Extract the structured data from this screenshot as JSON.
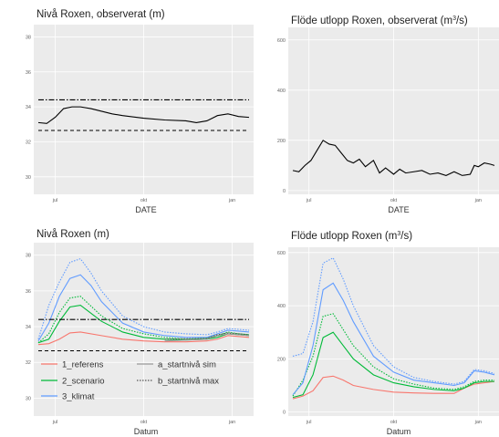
{
  "chart_data": [
    {
      "type": "line",
      "title": "Nivå Roxen, observerat (m)",
      "xlabel": "DATE",
      "x_ticks": [
        "jul",
        "okt",
        "jan"
      ],
      "ylim": [
        29,
        38.7
      ],
      "y_ticks": [
        30,
        32,
        34,
        36,
        38
      ],
      "grid": true,
      "series": [
        {
          "style": "solid",
          "color": "#000000",
          "x": [
            0,
            0.04,
            0.08,
            0.12,
            0.16,
            0.2,
            0.25,
            0.3,
            0.35,
            0.4,
            0.5,
            0.6,
            0.7,
            0.75,
            0.8,
            0.85,
            0.9,
            0.95,
            1
          ],
          "y": [
            33.1,
            33.05,
            33.4,
            33.9,
            34.0,
            34.0,
            33.9,
            33.75,
            33.6,
            33.5,
            33.35,
            33.25,
            33.2,
            33.1,
            33.2,
            33.5,
            33.6,
            33.45,
            33.4
          ]
        },
        {
          "style": "dotdash",
          "color": "#000000",
          "x": [
            0,
            1
          ],
          "y": [
            34.4,
            34.4
          ]
        },
        {
          "style": "dashed",
          "color": "#000000",
          "x": [
            0,
            1
          ],
          "y": [
            32.65,
            32.65
          ]
        }
      ]
    },
    {
      "type": "line",
      "title": "Flöde utlopp Roxen, observerat (m",
      "title_sup": "3",
      "title_end": "/s)",
      "xlabel": "DATE",
      "x_ticks": [
        "jul",
        "okt",
        "jan"
      ],
      "ylim": [
        -15,
        650
      ],
      "y_ticks": [
        0,
        200,
        400,
        600
      ],
      "grid": true,
      "series": [
        {
          "style": "solid",
          "color": "#000000",
          "x": [
            0,
            0.03,
            0.06,
            0.09,
            0.12,
            0.15,
            0.18,
            0.21,
            0.24,
            0.27,
            0.3,
            0.33,
            0.36,
            0.4,
            0.43,
            0.46,
            0.5,
            0.53,
            0.56,
            0.6,
            0.64,
            0.68,
            0.72,
            0.76,
            0.8,
            0.84,
            0.88,
            0.9,
            0.92,
            0.95,
            0.98,
            1
          ],
          "y": [
            80,
            75,
            100,
            120,
            160,
            200,
            185,
            180,
            150,
            120,
            110,
            125,
            95,
            120,
            70,
            90,
            65,
            85,
            70,
            75,
            80,
            65,
            70,
            60,
            75,
            60,
            65,
            100,
            95,
            110,
            105,
            100
          ]
        }
      ]
    },
    {
      "type": "line",
      "title": "Nivå Roxen (m)",
      "xlabel": "Datum",
      "x_ticks": [
        "jul",
        "okt",
        "jan"
      ],
      "ylim": [
        29,
        38.7
      ],
      "y_ticks": [
        30,
        32,
        34,
        36,
        38
      ],
      "grid": true,
      "legend": {
        "placement": "bottom-left",
        "items": [
          {
            "label": "1_referens",
            "color": "#f8766d",
            "style": "solid"
          },
          {
            "label": "2_scenario",
            "color": "#00ba38",
            "style": "solid"
          },
          {
            "label": "3_klimat",
            "color": "#619cff",
            "style": "solid"
          },
          {
            "label": "a_startnivå sim",
            "color": "#999999",
            "style": "solid"
          },
          {
            "label": "b_startnivå max",
            "color": "#555555",
            "style": "dotted"
          }
        ]
      },
      "series": [
        {
          "name": "1_referens",
          "style": "solid",
          "color": "#f8766d",
          "x": [
            0,
            0.05,
            0.1,
            0.15,
            0.2,
            0.3,
            0.4,
            0.5,
            0.6,
            0.7,
            0.8,
            0.85,
            0.9,
            0.95,
            1
          ],
          "y": [
            33.0,
            33.05,
            33.3,
            33.65,
            33.7,
            33.5,
            33.3,
            33.2,
            33.15,
            33.15,
            33.2,
            33.3,
            33.5,
            33.45,
            33.4
          ]
        },
        {
          "name": "2_scenario",
          "style": "solid",
          "color": "#00ba38",
          "x": [
            0,
            0.05,
            0.1,
            0.15,
            0.2,
            0.3,
            0.4,
            0.5,
            0.6,
            0.7,
            0.8,
            0.85,
            0.9,
            0.95,
            1
          ],
          "y": [
            33.1,
            33.3,
            34.3,
            35.1,
            35.2,
            34.3,
            33.7,
            33.4,
            33.3,
            33.25,
            33.3,
            33.4,
            33.6,
            33.55,
            33.5
          ]
        },
        {
          "name": "2_scenario max",
          "style": "dotted",
          "color": "#00ba38",
          "x": [
            0,
            0.05,
            0.1,
            0.15,
            0.2,
            0.3,
            0.4,
            0.5,
            0.6,
            0.7,
            0.8,
            0.85,
            0.9,
            0.95,
            1
          ],
          "y": [
            33.1,
            33.6,
            34.8,
            35.6,
            35.7,
            34.6,
            33.9,
            33.6,
            33.4,
            33.3,
            33.35,
            33.5,
            33.7,
            33.6,
            33.55
          ]
        },
        {
          "name": "3_klimat",
          "style": "solid",
          "color": "#619cff",
          "x": [
            0,
            0.05,
            0.1,
            0.15,
            0.2,
            0.25,
            0.3,
            0.4,
            0.5,
            0.6,
            0.7,
            0.8,
            0.85,
            0.9,
            0.95,
            1
          ],
          "y": [
            33.2,
            34.2,
            35.7,
            36.7,
            36.9,
            36.3,
            35.4,
            34.2,
            33.7,
            33.5,
            33.4,
            33.4,
            33.6,
            33.8,
            33.75,
            33.7
          ]
        },
        {
          "name": "3_klimat max",
          "style": "dotted",
          "color": "#619cff",
          "x": [
            0,
            0.05,
            0.1,
            0.15,
            0.2,
            0.25,
            0.3,
            0.4,
            0.5,
            0.6,
            0.7,
            0.8,
            0.85,
            0.9,
            0.95,
            1
          ],
          "y": [
            33.3,
            35.2,
            36.5,
            37.6,
            37.8,
            37.0,
            36.0,
            34.6,
            34.0,
            33.7,
            33.6,
            33.55,
            33.7,
            33.9,
            33.85,
            33.8
          ]
        },
        {
          "name": "a_startnivå sim",
          "style": "solid",
          "color": "#999999",
          "x": [
            0.6,
            0.8,
            0.85,
            0.9,
            0.95,
            1
          ],
          "y": [
            33.2,
            33.3,
            33.5,
            33.6,
            33.55,
            33.5
          ]
        },
        {
          "name": "b_startnivå max",
          "style": "dotted",
          "color": "#555555",
          "x": [
            0.6,
            0.8,
            0.85,
            0.9,
            0.95,
            1
          ],
          "y": [
            33.3,
            33.35,
            33.55,
            33.65,
            33.6,
            33.55
          ]
        },
        {
          "name": "34.4",
          "style": "dotdash",
          "color": "#000000",
          "x": [
            0,
            1
          ],
          "y": [
            34.4,
            34.4
          ]
        },
        {
          "name": "32.65",
          "style": "dashed",
          "color": "#000000",
          "x": [
            0,
            1
          ],
          "y": [
            32.65,
            32.65
          ]
        }
      ]
    },
    {
      "type": "line",
      "title": "Flöde utlopp Roxen (m",
      "title_sup": "3",
      "title_end": "/s)",
      "xlabel": "Datum",
      "x_ticks": [
        "jul",
        "okt",
        "jan"
      ],
      "ylim": [
        -15,
        620
      ],
      "y_ticks": [
        0,
        200,
        400,
        600
      ],
      "grid": true,
      "series": [
        {
          "name": "1_referens",
          "style": "solid",
          "color": "#f8766d",
          "x": [
            0,
            0.05,
            0.1,
            0.15,
            0.2,
            0.25,
            0.3,
            0.4,
            0.5,
            0.6,
            0.7,
            0.8,
            0.85,
            0.9,
            0.95,
            1
          ],
          "y": [
            50,
            60,
            80,
            130,
            135,
            120,
            100,
            85,
            75,
            72,
            70,
            70,
            90,
            105,
            110,
            115
          ]
        },
        {
          "name": "2_scenario",
          "style": "solid",
          "color": "#00ba38",
          "x": [
            0,
            0.05,
            0.1,
            0.15,
            0.2,
            0.25,
            0.3,
            0.4,
            0.5,
            0.6,
            0.7,
            0.8,
            0.85,
            0.9,
            0.95,
            1
          ],
          "y": [
            55,
            65,
            140,
            280,
            300,
            250,
            200,
            140,
            110,
            95,
            85,
            80,
            90,
            110,
            115,
            115
          ]
        },
        {
          "name": "2_scenario max",
          "style": "dotted",
          "color": "#00ba38",
          "x": [
            0,
            0.05,
            0.1,
            0.15,
            0.2,
            0.25,
            0.3,
            0.4,
            0.5,
            0.6,
            0.7,
            0.8,
            0.85,
            0.9,
            0.95,
            1
          ],
          "y": [
            60,
            120,
            210,
            360,
            370,
            310,
            250,
            170,
            125,
            105,
            90,
            85,
            95,
            115,
            120,
            120
          ]
        },
        {
          "name": "3_klimat",
          "style": "solid",
          "color": "#619cff",
          "x": [
            0,
            0.05,
            0.1,
            0.15,
            0.2,
            0.25,
            0.3,
            0.4,
            0.5,
            0.6,
            0.7,
            0.8,
            0.85,
            0.9,
            0.95,
            1
          ],
          "y": [
            65,
            110,
            250,
            460,
            485,
            420,
            340,
            210,
            150,
            120,
            110,
            100,
            110,
            155,
            150,
            140
          ]
        },
        {
          "name": "3_klimat max",
          "style": "dotted",
          "color": "#619cff",
          "x": [
            0,
            0.05,
            0.1,
            0.15,
            0.2,
            0.25,
            0.3,
            0.4,
            0.5,
            0.6,
            0.7,
            0.8,
            0.85,
            0.9,
            0.95,
            1
          ],
          "y": [
            210,
            220,
            340,
            560,
            580,
            500,
            400,
            250,
            170,
            130,
            115,
            105,
            115,
            160,
            155,
            145
          ]
        }
      ]
    }
  ]
}
